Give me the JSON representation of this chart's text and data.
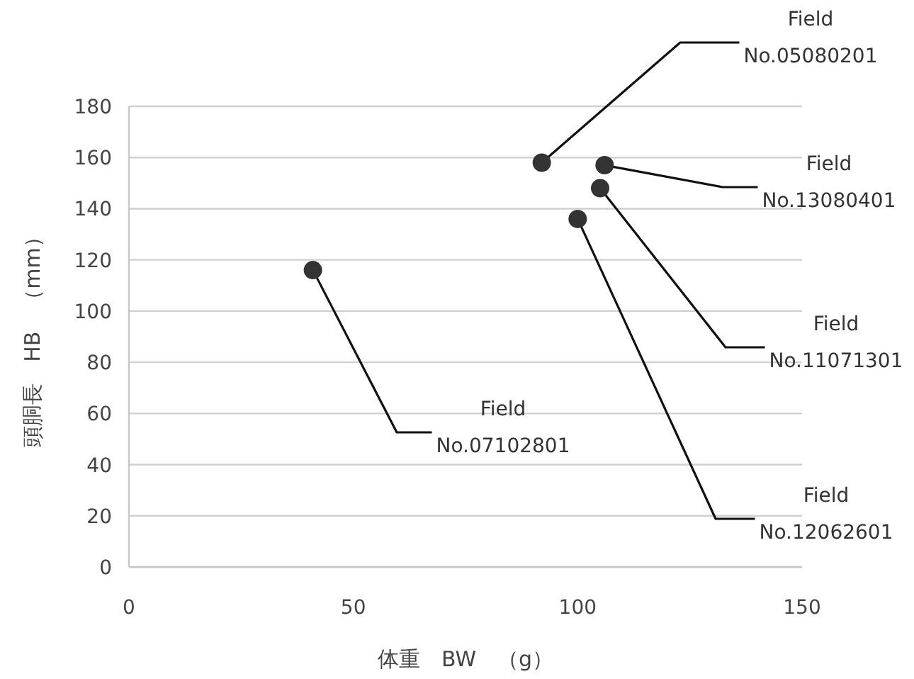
{
  "chart_data": {
    "type": "scatter",
    "xlabel": "体重　BW　（g）",
    "ylabel": "頭胴長　HB　（mm）",
    "x": [
      41,
      92,
      106,
      105,
      100
    ],
    "values": [
      116,
      158,
      157,
      148,
      136
    ],
    "color": "#333333",
    "marker": "circle",
    "grid": "y",
    "legend": false,
    "xlim": [
      0,
      150
    ],
    "ylim": [
      0,
      180
    ],
    "xticks": [
      0,
      50,
      100,
      150
    ],
    "yticks": [
      0,
      20,
      40,
      60,
      80,
      100,
      120,
      140,
      160,
      180
    ],
    "annotations": [
      {
        "text": "Field No.05080201",
        "x": 92,
        "y": 158
      },
      {
        "text": "Field No.13080401",
        "x": 106,
        "y": 157
      },
      {
        "text": "Field No.11071301",
        "x": 105,
        "y": 148
      },
      {
        "text": "Field No.12062601",
        "x": 100,
        "y": 136
      },
      {
        "text": "Field No.07102801",
        "x": 41,
        "y": 116
      }
    ]
  }
}
